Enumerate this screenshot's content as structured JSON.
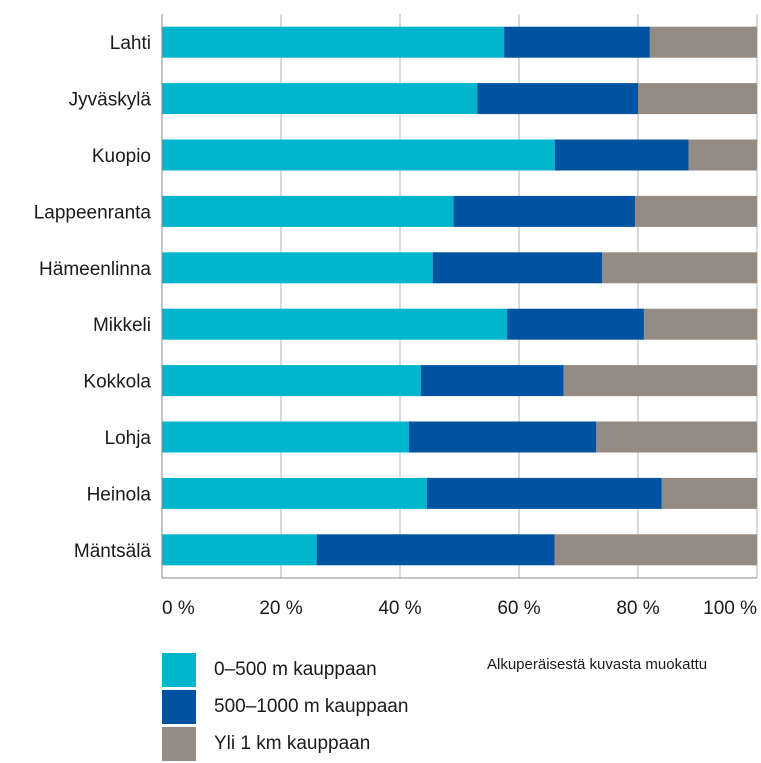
{
  "chart_data": {
    "type": "bar",
    "orientation": "horizontal",
    "stacked": "percent",
    "categories": [
      "Lahti",
      "Jyväskylä",
      "Kuopio",
      "Lappeenranta",
      "Hämeenlinna",
      "Mikkeli",
      "Kokkola",
      "Lohja",
      "Heinola",
      "Mäntsälä"
    ],
    "series": [
      {
        "name": "0–500 m kauppaan",
        "color": "#00b5cc",
        "values": [
          57.5,
          53,
          66,
          49,
          45.5,
          58,
          43.5,
          41.5,
          44.5,
          26
        ]
      },
      {
        "name": "500–1000 m kauppaan",
        "color": "#0053a0",
        "values": [
          24.5,
          27,
          22.5,
          30.5,
          28.5,
          23,
          24,
          31.5,
          39.5,
          40
        ]
      },
      {
        "name": "Yli 1 km kauppaan",
        "color": "#968b83",
        "values": [
          18,
          20,
          11.5,
          20.5,
          26,
          19,
          32.5,
          27,
          16,
          34
        ]
      }
    ],
    "xlim": [
      0,
      100
    ],
    "xticks": [
      "0 %",
      "20 %",
      "40 %",
      "60 %",
      "80 %",
      "100 %"
    ],
    "grid": true,
    "legend_position": "bottom-left",
    "note": "Alkuperäisestä kuvasta muokattu"
  }
}
